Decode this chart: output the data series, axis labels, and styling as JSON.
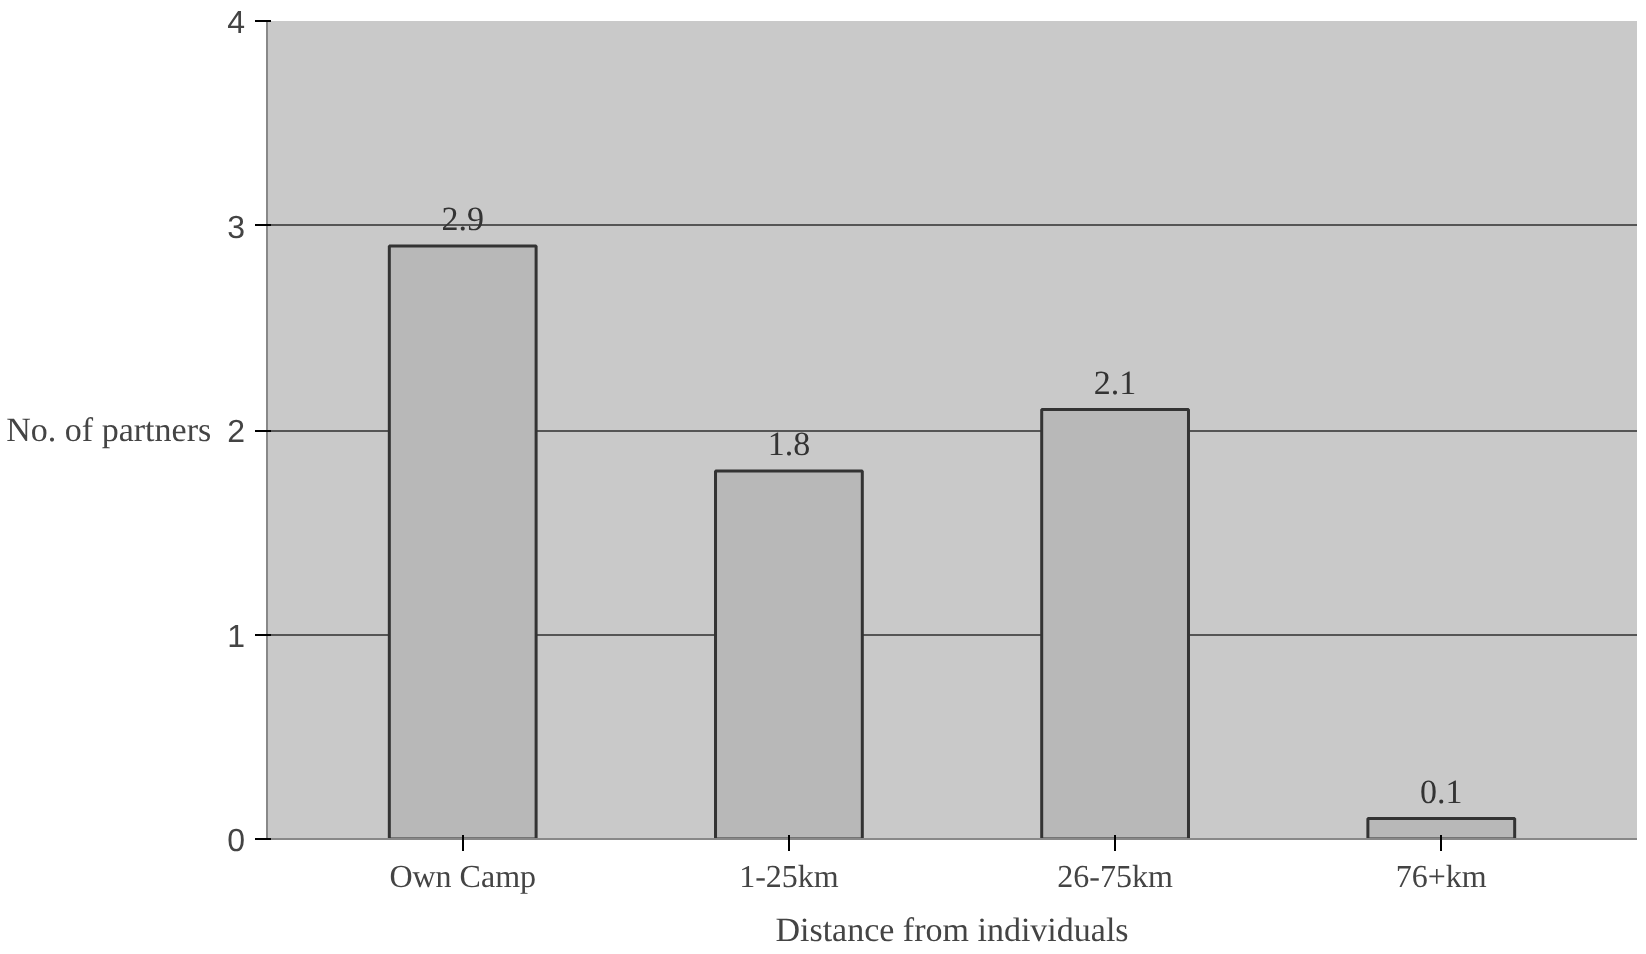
{
  "chart_data": {
    "type": "bar",
    "xlabel": "Distance from individuals",
    "ylabel": "No. of partners",
    "categories": [
      "Own Camp",
      "1-25km",
      "26-75km",
      "76+km"
    ],
    "values": [
      2.9,
      1.8,
      2.1,
      0.1
    ],
    "color": "#b8b8b8",
    "ylim": [
      0,
      4
    ],
    "yticks": [
      0,
      1,
      2,
      3,
      4
    ],
    "grid": "y",
    "data_labels": true
  }
}
